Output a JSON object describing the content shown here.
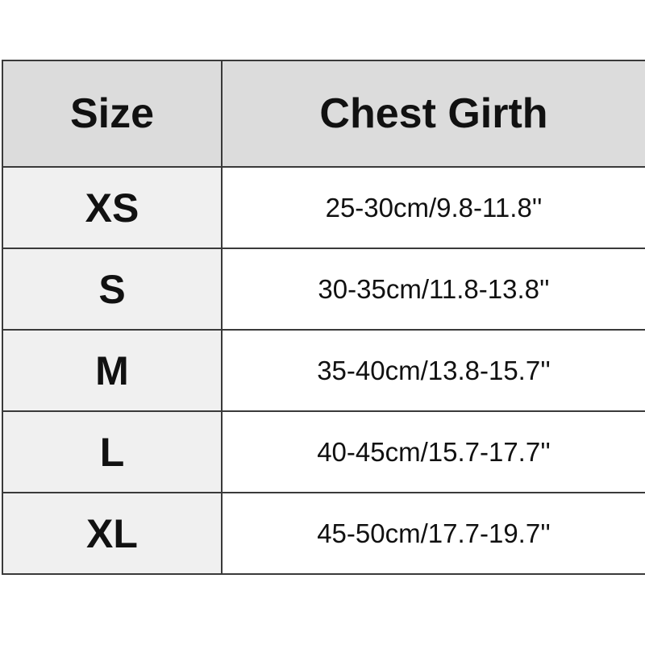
{
  "table": {
    "headers": [
      "Size",
      "Chest Girth"
    ],
    "rows": [
      {
        "size": "XS",
        "chest": "25-30cm/9.8-11.8''"
      },
      {
        "size": "S",
        "chest": "30-35cm/11.8-13.8''"
      },
      {
        "size": "M",
        "chest": "35-40cm/13.8-15.7''"
      },
      {
        "size": "L",
        "chest": "40-45cm/15.7-17.7''"
      },
      {
        "size": "XL",
        "chest": "45-50cm/17.7-19.7''"
      }
    ]
  },
  "colors": {
    "header_bg": "#dcdcdc",
    "size_col_bg": "#f0f0f0",
    "border": "#3a3a3a"
  }
}
